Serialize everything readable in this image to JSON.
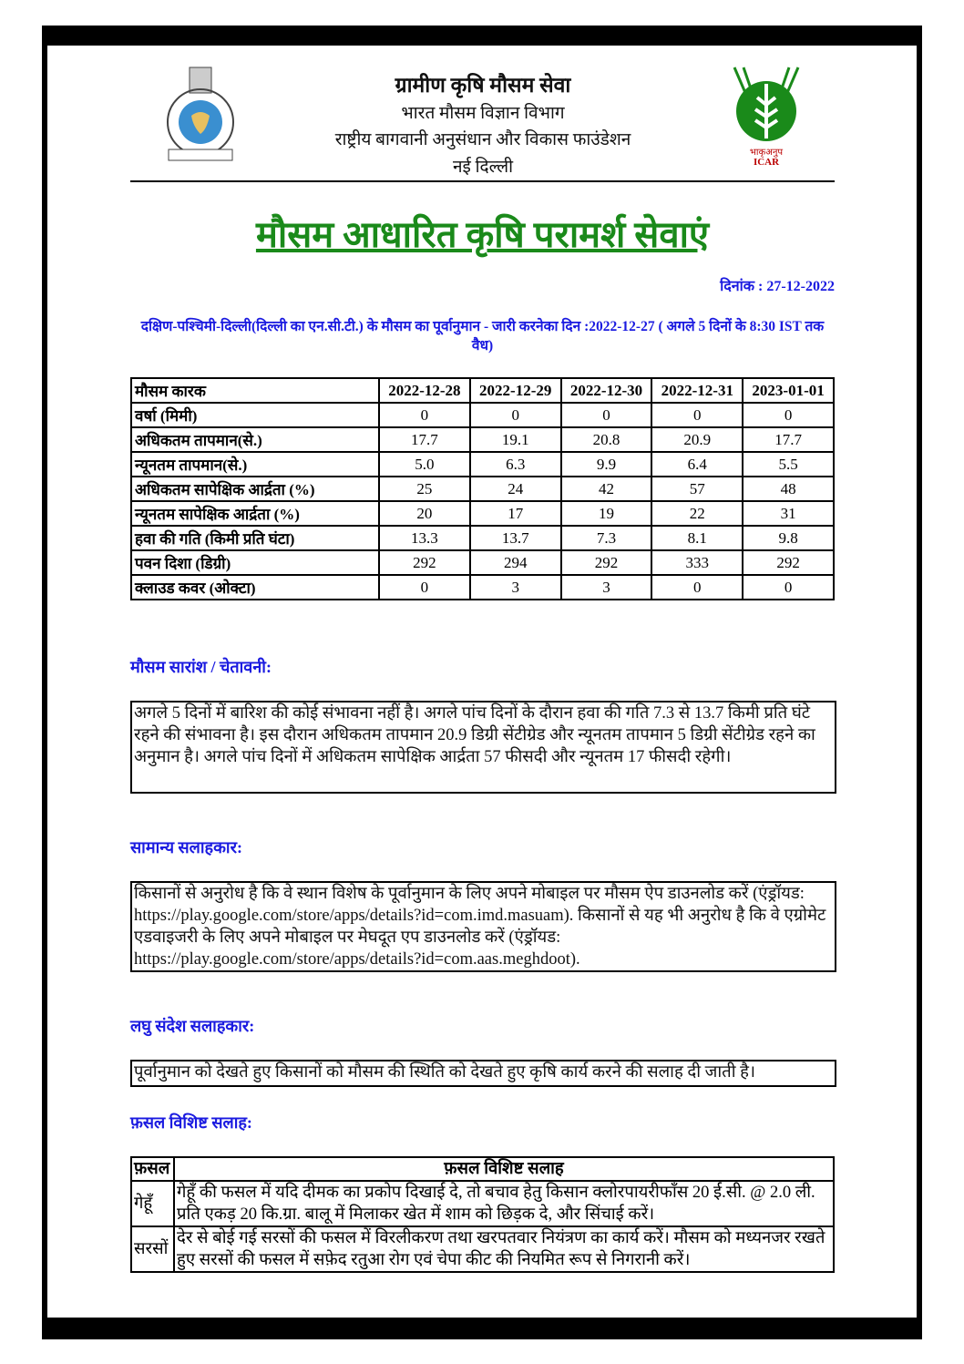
{
  "header": {
    "line1": "ग्रामीण कृषि मौसम सेवा",
    "line2": "भारत मौसम विज्ञान विभाग",
    "line3": "राष्ट्रीय बागवानी अनुसंधान और विकास फाउंडेशन",
    "line4": "नई दिल्ली",
    "icar_logo_text": "भाकृअनुप ICAR"
  },
  "title": "मौसम आधारित कृषि परामर्श सेवाएं",
  "date_label": "दिनांक : 27-12-2022",
  "forecast_heading": "दक्षिण-पश्चिमी-दिल्ली(दिल्ली का एन.सी.टी.) के मौसम का पूर्वानुमान - जारी करनेका दिन :2022-12-27 ( अगले 5 दिनों के 8:30 IST तक वैध)",
  "weather_table": {
    "headers": [
      "मौसम कारक",
      "2022-12-28",
      "2022-12-29",
      "2022-12-30",
      "2022-12-31",
      "2023-01-01"
    ],
    "rows": [
      [
        "वर्षा (मिमी)",
        "0",
        "0",
        "0",
        "0",
        "0"
      ],
      [
        "अधिकतम तापमान(से.)",
        "17.7",
        "19.1",
        "20.8",
        "20.9",
        "17.7"
      ],
      [
        "न्यूनतम तापमान(से.)",
        "5.0",
        "6.3",
        "9.9",
        "6.4",
        "5.5"
      ],
      [
        "अधिकतम सापेक्षिक आर्द्रता (%)",
        "25",
        "24",
        "42",
        "57",
        "48"
      ],
      [
        "न्यूनतम सापेक्षिक आर्द्रता (%)",
        "20",
        "17",
        "19",
        "22",
        "31"
      ],
      [
        "हवा की गति (किमी प्रति घंटा)",
        "13.3",
        "13.7",
        "7.3",
        "8.1",
        "9.8"
      ],
      [
        "पवन दिशा (डिग्री)",
        "292",
        "294",
        "292",
        "333",
        "292"
      ],
      [
        "क्लाउड कवर (ओक्टा)",
        "0",
        "3",
        "3",
        "0",
        "0"
      ]
    ]
  },
  "summary": {
    "heading": "मौसम सारांश / चेतावनी:",
    "text": "अगले 5 दिनों में बारिश की कोई संभावना नहीं है। अगले पांच दिनों के दौरान हवा की गति 7.3 से 13.7 किमी प्रति घंटे रहने की संभावना है। इस दौरान अधिकतम तापमान 20.9 डिग्री सेंटीग्रेड और न्यूनतम तापमान 5 डिग्री सेंटीग्रेड रहने का अनुमान है। अगले पांच दिनों में अधिकतम सापेक्षिक आर्द्रता 57 फीसदी और न्यूनतम 17 फीसदी रहेगी।"
  },
  "general": {
    "heading": "सामान्य सलाहकार:",
    "text": "किसानों से अनुरोध है कि वे स्थान विशेष के पूर्वानुमान के लिए अपने मोबाइल पर मौसम ऐप डाउनलोड करें (एंड्रॉयड: https://play.google.com/store/apps/details?id=com.imd.masuam). किसानों से यह भी अनुरोध है कि वे एग्रोमेट एडवाइजरी के लिए अपने मोबाइल पर मेघदूत एप डाउनलोड करें (एंड्रॉयड: https://play.google.com/store/apps/details?id=com.aas.meghdoot)."
  },
  "sms": {
    "heading": "लघु संदेश सलाहकार:",
    "text": "पूर्वानुमान को देखते हुए किसानों को मौसम की स्थिति को देखते हुए कृषि कार्य करने की सलाह दी जाती है।"
  },
  "crop": {
    "heading": "फ़सल विशिष्ट सलाह:",
    "col1": "फ़सल",
    "col2": "फ़सल विशिष्ट सलाह",
    "rows": [
      {
        "crop": "गेहूँ",
        "advice": "गेहूँ की फसल में यदि दीमक का प्रकोप दिखाई दे, तो बचाव हेतु किसान क्लोरपायरीफाँस 20 ई.सी. @ 2.0 ली. प्रति एकड़ 20 कि.ग्रा. बालू में मिलाकर खेत में शाम को छिड़क दे, और सिंचाई करें।"
      },
      {
        "crop": "सरसों",
        "advice": "देर से बोई गई सरसों की फसल में विरलीकरण तथा खरपतवार नियंत्रण का कार्य करें। मौसम को मध्यनजर रखते हुए सरसों की फसल में सफ़ेद रतुआ रोग एवं चेपा कीट की नियमित रूप से निगरानी करें।"
      }
    ]
  },
  "colors": {
    "title_green": "#1a8a1a",
    "heading_blue": "#1a1ae0"
  }
}
